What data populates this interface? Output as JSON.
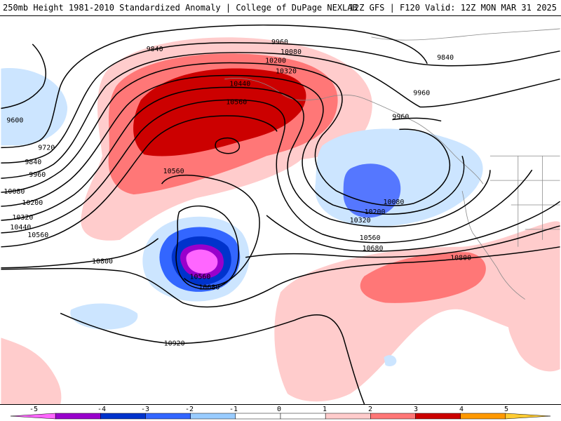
{
  "header": {
    "left_title": "250mb Height 1981-2010 Standardized Anomaly | College of DuPage NEXLAB",
    "right_title": "12Z GFS | F120 Valid: 12Z MON MAR 31 2025"
  },
  "map": {
    "background_color": "#ffffff",
    "contour_color": "#000000",
    "height_contours": [
      "9600",
      "9720",
      "9840",
      "9960",
      "10080",
      "10200",
      "10320",
      "10440",
      "10560",
      "10680",
      "10800",
      "10920"
    ],
    "contour_labels": [
      {
        "text": "9840"
      },
      {
        "text": "9960"
      },
      {
        "text": "10080"
      },
      {
        "text": "10200"
      },
      {
        "text": "10320"
      },
      {
        "text": "10440"
      },
      {
        "text": "10560"
      },
      {
        "text": "9840"
      },
      {
        "text": "9960"
      },
      {
        "text": "9960"
      },
      {
        "text": "9600"
      },
      {
        "text": "9720"
      },
      {
        "text": "9840"
      },
      {
        "text": "9960"
      },
      {
        "text": "10080"
      },
      {
        "text": "10200"
      },
      {
        "text": "10320"
      },
      {
        "text": "10440"
      },
      {
        "text": "10560"
      },
      {
        "text": "10560"
      },
      {
        "text": "10080"
      },
      {
        "text": "10200"
      },
      {
        "text": "10320"
      },
      {
        "text": "10560"
      },
      {
        "text": "10680"
      },
      {
        "text": "10800"
      },
      {
        "text": "10560"
      },
      {
        "text": "10680"
      },
      {
        "text": "10800"
      },
      {
        "text": "10920"
      }
    ]
  },
  "colorbar": {
    "ticks": [
      "-5",
      "-4",
      "-3",
      "-2",
      "-1",
      "0",
      "1",
      "2",
      "3",
      "4",
      "5"
    ],
    "colors": [
      "#ff66ff",
      "#9900cc",
      "#0033cc",
      "#3366ff",
      "#99ccff",
      "#ffffff",
      "#ffffff",
      "#ffcccc",
      "#ff7777",
      "#cc0000",
      "#ff9900",
      "#ffcc33"
    ]
  }
}
